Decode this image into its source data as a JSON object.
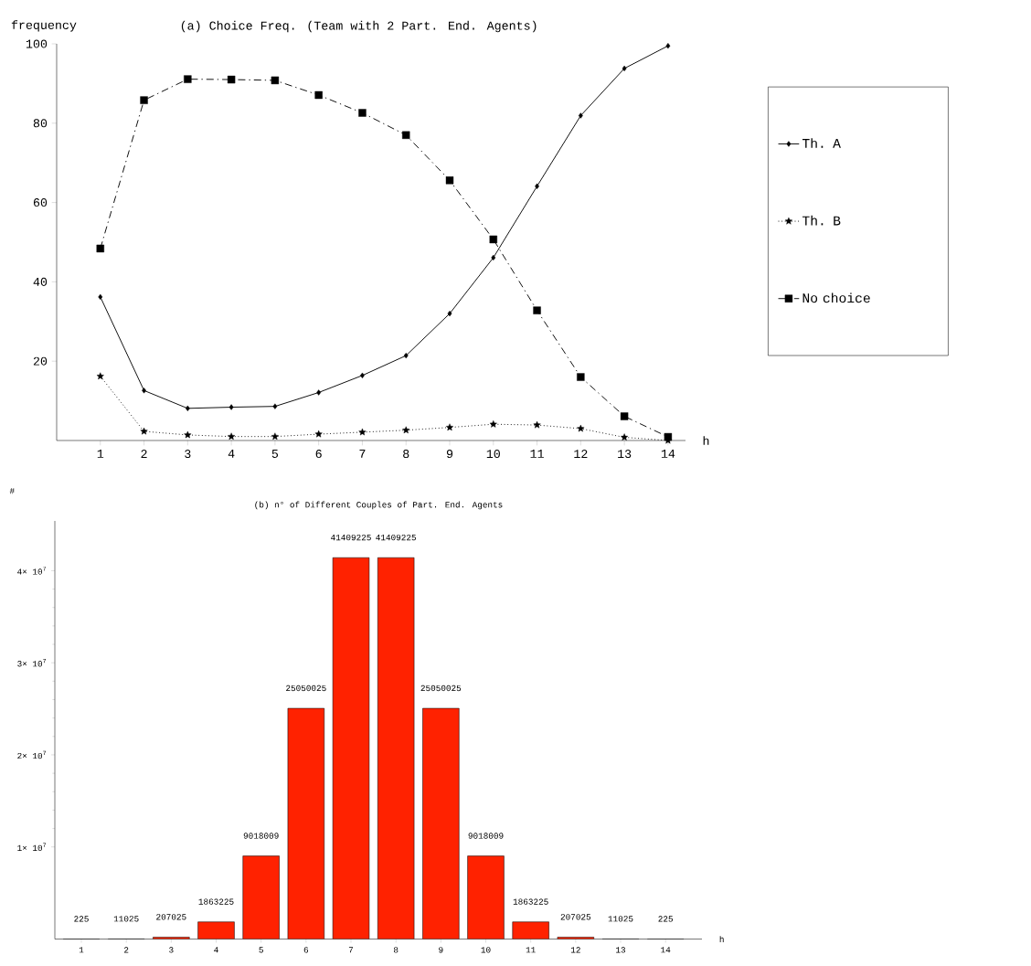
{
  "chart_data": [
    {
      "type": "line",
      "title": "(a) Choice Freq. (Team with 2 Part. End. Agents)",
      "xlabel": "h",
      "ylabel": "frequency",
      "x": [
        1,
        2,
        3,
        4,
        5,
        6,
        7,
        8,
        9,
        10,
        11,
        12,
        13,
        14
      ],
      "xlim": [
        0,
        14.4
      ],
      "xticks": [
        1,
        2,
        3,
        4,
        5,
        6,
        7,
        8,
        9,
        10,
        11,
        12,
        13,
        14
      ],
      "ylim": [
        0,
        100
      ],
      "yticks": [
        20,
        40,
        60,
        80,
        100
      ],
      "legend": "right",
      "grid": false,
      "series": [
        {
          "name": "Th. A",
          "color": "#000000",
          "marker": "diamond",
          "line_style": "solid",
          "values": [
            36.2,
            12.6,
            8.1,
            8.4,
            8.6,
            12.1,
            16.4,
            21.4,
            32.0,
            46.1,
            64.1,
            81.9,
            93.8,
            99.5
          ]
        },
        {
          "name": "Th. B",
          "color": "#000000",
          "marker": "star",
          "line_style": "dotted",
          "values": [
            16.2,
            2.3,
            1.4,
            1.0,
            1.0,
            1.6,
            2.1,
            2.6,
            3.3,
            4.1,
            3.9,
            3.0,
            0.8,
            0.0
          ]
        },
        {
          "name": "No choice",
          "color": "#000000",
          "marker": "square",
          "line_style": "dashdot",
          "values": [
            48.4,
            85.8,
            91.1,
            91.0,
            90.8,
            87.1,
            82.6,
            77.0,
            65.6,
            50.7,
            32.8,
            16.0,
            6.1,
            0.9
          ]
        }
      ]
    },
    {
      "type": "bar",
      "title": "(b) n° of Different Couples of Part. End. Agents",
      "xlabel": "h",
      "ylabel": "#",
      "categories": [
        "1",
        "2",
        "3",
        "4",
        "5",
        "6",
        "7",
        "8",
        "9",
        "10",
        "11",
        "12",
        "13",
        "14"
      ],
      "color": "#ff2200",
      "data_labels": true,
      "ylim": [
        0,
        45400000
      ],
      "yticks": [
        {
          "value": 10000000,
          "label": "1× 10$^{7}$"
        },
        {
          "value": 20000000,
          "label": "2× 10$^{7}$"
        },
        {
          "value": 30000000,
          "label": "3× 10$^{7}$"
        },
        {
          "value": 40000000,
          "label": "4× 10$^{7}$"
        }
      ],
      "values": [
        225,
        11025,
        207025,
        1863225,
        9018009,
        25050025,
        41409225,
        41409225,
        25050025,
        9018009,
        1863225,
        207025,
        11025,
        225
      ]
    }
  ]
}
